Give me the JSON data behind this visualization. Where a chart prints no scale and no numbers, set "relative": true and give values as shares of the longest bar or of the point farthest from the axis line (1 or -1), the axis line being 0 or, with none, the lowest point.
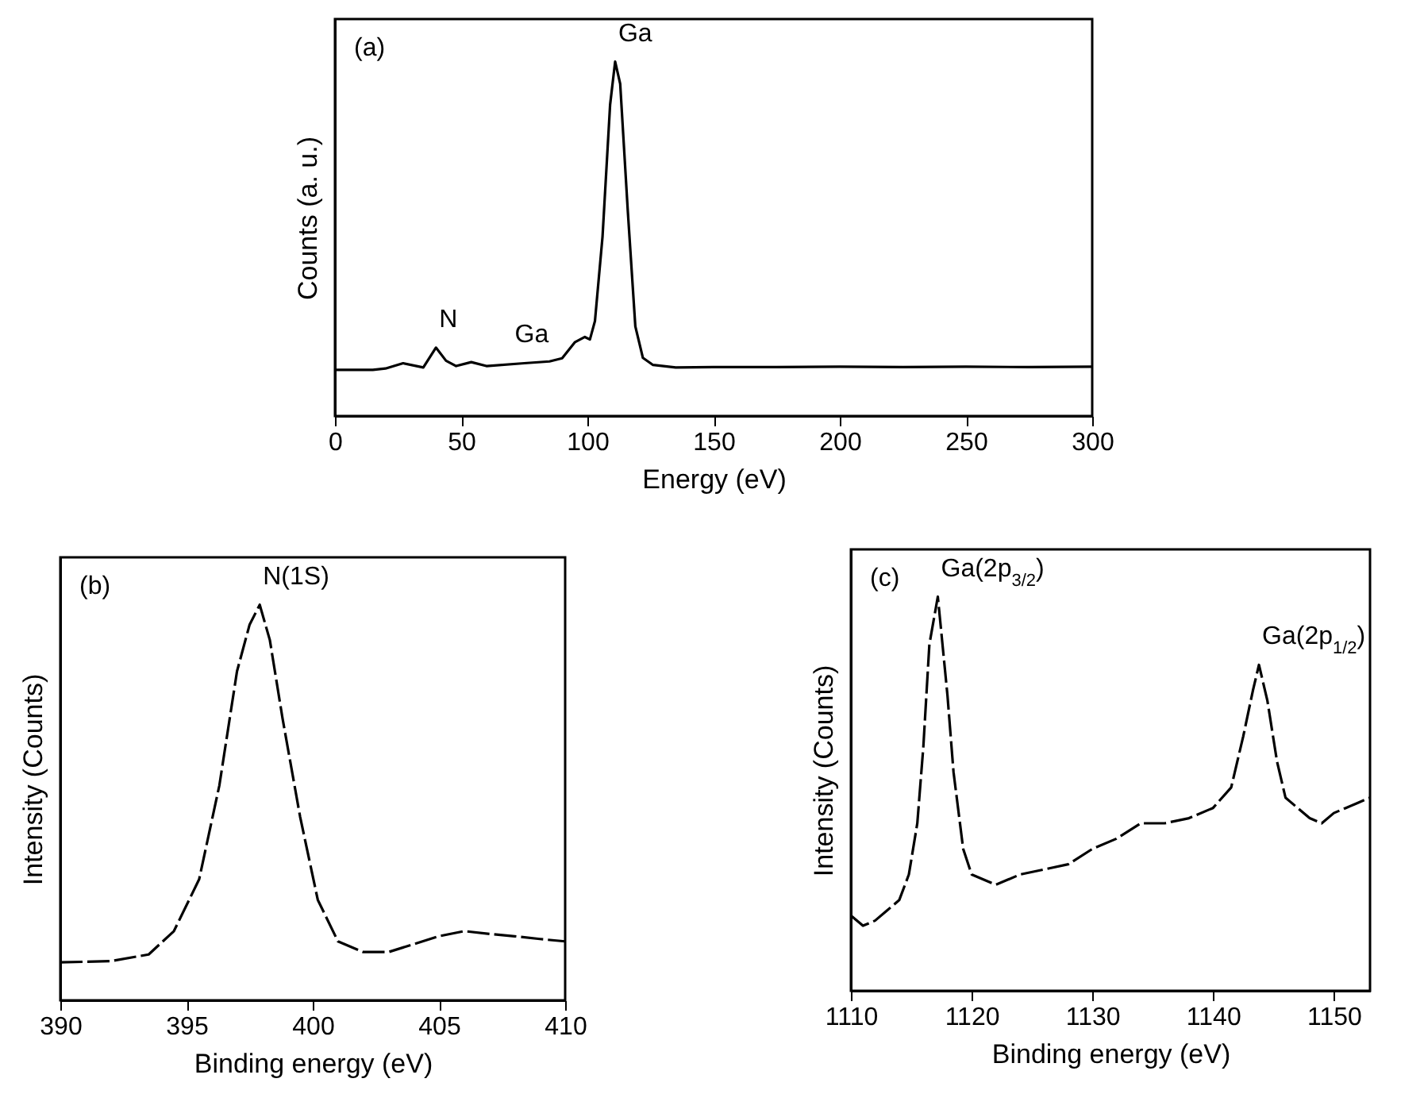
{
  "chart_data": [
    {
      "type": "line",
      "xlabel": "Energy (eV)",
      "ylabel": "Counts (a. u.)",
      "relative": true,
      "xlim": [
        0,
        300
      ],
      "xticks": [
        0,
        50,
        100,
        150,
        200,
        250,
        300
      ],
      "line_style": "solid",
      "annotations": [
        "(a)",
        {
          "text": "N",
          "x": 40,
          "y": 0.193
        },
        {
          "text": "Ga",
          "x": 70,
          "y": 0.149
        },
        {
          "text": "Ga",
          "x": 111,
          "y": 1
        }
      ],
      "series": [
        {
          "color": "#000000",
          "x": [
            0,
            15,
            20,
            27,
            35,
            40,
            44,
            48,
            54,
            60,
            75,
            85,
            90,
            95,
            99,
            101,
            103,
            106,
            109,
            111,
            113,
            116,
            119,
            122,
            126,
            135,
            150,
            175,
            200,
            225,
            250,
            275,
            300
          ],
          "values": [
            0.13,
            0.13,
            0.134,
            0.149,
            0.137,
            0.193,
            0.156,
            0.141,
            0.152,
            0.141,
            0.149,
            0.154,
            0.163,
            0.208,
            0.223,
            0.216,
            0.268,
            0.506,
            0.878,
            1,
            0.937,
            0.58,
            0.253,
            0.164,
            0.144,
            0.137,
            0.138,
            0.138,
            0.139,
            0.138,
            0.139,
            0.138,
            0.139
          ]
        }
      ]
    },
    {
      "type": "line",
      "xlabel": "Binding energy (eV)",
      "ylabel": "Intensity (Counts)",
      "relative": true,
      "xlim": [
        390,
        410
      ],
      "xticks": [
        390,
        395,
        400,
        405,
        410
      ],
      "line_style": "dashed",
      "annotations": [
        "(b)",
        {
          "text": "N(1S)",
          "x": 397.9,
          "y": 1
        }
      ],
      "series": [
        {
          "color": "#000000",
          "x": [
            390,
            392,
            393.5,
            394.5,
            395.5,
            396.3,
            397,
            397.5,
            397.9,
            398.3,
            398.8,
            399.5,
            400.2,
            401,
            402,
            403,
            404,
            405,
            406,
            407,
            408,
            409,
            410
          ],
          "values": [
            0.096,
            0.099,
            0.116,
            0.175,
            0.306,
            0.543,
            0.832,
            0.95,
            1,
            0.911,
            0.714,
            0.464,
            0.254,
            0.149,
            0.122,
            0.122,
            0.142,
            0.162,
            0.175,
            0.168,
            0.162,
            0.155,
            0.149
          ]
        }
      ]
    },
    {
      "type": "line",
      "xlabel": "Binding energy (eV)",
      "ylabel": "Intensity (Counts)",
      "relative": true,
      "xlim": [
        1110,
        1153
      ],
      "xticks": [
        1110,
        1120,
        1130,
        1140,
        1150
      ],
      "line_style": "dashed",
      "annotations": [
        "(c)",
        {
          "text": "Ga(2p$_{3/2}$)",
          "x": 1117.2,
          "y": 1
        },
        {
          "text": "Ga(2p$_{1/2}$)",
          "x": 1143.8,
          "y": 0.827
        }
      ],
      "series": [
        {
          "color": "#000000",
          "x": [
            1110,
            1111,
            1112,
            1113,
            1114,
            1114.8,
            1115.5,
            1116,
            1116.5,
            1117.2,
            1118,
            1118.5,
            1119.3,
            1120,
            1122,
            1124,
            1126,
            1128,
            1130,
            1132,
            1134,
            1136,
            1138,
            1140,
            1141.5,
            1142.5,
            1143.3,
            1143.8,
            1144.5,
            1145.3,
            1146,
            1147,
            1148,
            1149,
            1150,
            1151,
            1152,
            1153
          ],
          "values": [
            0.191,
            0.165,
            0.178,
            0.204,
            0.23,
            0.295,
            0.425,
            0.619,
            0.879,
            1,
            0.749,
            0.555,
            0.36,
            0.295,
            0.269,
            0.295,
            0.308,
            0.321,
            0.36,
            0.386,
            0.425,
            0.425,
            0.438,
            0.464,
            0.516,
            0.646,
            0.762,
            0.827,
            0.736,
            0.581,
            0.49,
            0.464,
            0.438,
            0.425,
            0.451,
            0.464,
            0.477,
            0.49
          ]
        }
      ]
    }
  ]
}
